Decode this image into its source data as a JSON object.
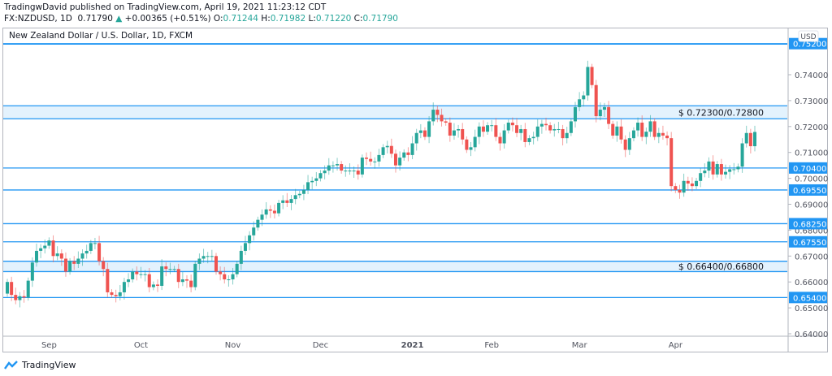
{
  "header": {
    "published": "TradingwDavid published on TradingView.com, April 19, 2021 11:23:12 CDT",
    "symbol": "FX:NZDUSD, 1D",
    "last": "0.71790",
    "change": "+0.00365 (+0.51%)",
    "open_label": "O:",
    "open": "0.71244",
    "high_label": "H:",
    "high": "0.71982",
    "low_label": "L:",
    "low": "0.71220",
    "close_label": "C:",
    "close": "0.71790",
    "change_icon": "triangle-up-icon"
  },
  "chart_title": "New Zealand Dollar / U.S. Dollar, 1D, FXCM",
  "currency_badge": "USD",
  "footer": {
    "brand": "TradingView",
    "logo_icon": "tradingview-logo-icon"
  },
  "colors": {
    "up": "#26a69a",
    "down": "#ef5350",
    "level": "#2196f3",
    "zone": "#e3f2fd"
  },
  "chart_data": {
    "type": "candlestick",
    "symbol": "NZDUSD",
    "interval": "1D",
    "ylim": [
      0.637,
      0.7535
    ],
    "y_ticks": [
      "0.74000",
      "0.73000",
      "0.72000",
      "0.71000",
      "0.70000",
      "0.69000",
      "0.68000",
      "0.67000",
      "0.66000",
      "0.65000",
      "0.64000"
    ],
    "y_tick_values": [
      0.74,
      0.73,
      0.72,
      0.71,
      0.7,
      0.69,
      0.68,
      0.67,
      0.66,
      0.65,
      0.64
    ],
    "x_labels": [
      {
        "label": "Sep",
        "bar": 10
      },
      {
        "label": "Oct",
        "bar": 32
      },
      {
        "label": "Nov",
        "bar": 54
      },
      {
        "label": "Dec",
        "bar": 75
      },
      {
        "label": "2021",
        "bar": 97,
        "bold": true
      },
      {
        "label": "Feb",
        "bar": 116
      },
      {
        "label": "Mar",
        "bar": 137
      },
      {
        "label": "Apr",
        "bar": 160
      }
    ],
    "first_open": 0.6555,
    "closes": [
      0.66,
      0.655,
      0.653,
      0.6545,
      0.654,
      0.6605,
      0.6675,
      0.672,
      0.673,
      0.674,
      0.676,
      0.67,
      0.671,
      0.669,
      0.664,
      0.668,
      0.667,
      0.669,
      0.671,
      0.672,
      0.675,
      0.675,
      0.668,
      0.665,
      0.656,
      0.655,
      0.6545,
      0.656,
      0.66,
      0.661,
      0.664,
      0.663,
      0.663,
      0.663,
      0.658,
      0.659,
      0.6585,
      0.666,
      0.665,
      0.665,
      0.665,
      0.66,
      0.661,
      0.6605,
      0.658,
      0.667,
      0.669,
      0.67,
      0.67,
      0.67,
      0.664,
      0.663,
      0.661,
      0.661,
      0.663,
      0.667,
      0.672,
      0.675,
      0.678,
      0.681,
      0.684,
      0.686,
      0.688,
      0.6875,
      0.6865,
      0.6905,
      0.6915,
      0.6905,
      0.692,
      0.6935,
      0.694,
      0.6955,
      0.6985,
      0.699,
      0.7,
      0.702,
      0.703,
      0.705,
      0.705,
      0.7055,
      0.703,
      0.703,
      0.703,
      0.703,
      0.7015,
      0.708,
      0.7075,
      0.7065,
      0.7065,
      0.709,
      0.712,
      0.7125,
      0.7095,
      0.705,
      0.708,
      0.71,
      0.709,
      0.7135,
      0.7175,
      0.7185,
      0.716,
      0.722,
      0.7265,
      0.7245,
      0.722,
      0.7215,
      0.7165,
      0.7185,
      0.719,
      0.715,
      0.711,
      0.712,
      0.716,
      0.72,
      0.718,
      0.7205,
      0.7205,
      0.716,
      0.7135,
      0.7185,
      0.7215,
      0.7205,
      0.7175,
      0.719,
      0.714,
      0.7155,
      0.716,
      0.72,
      0.721,
      0.7205,
      0.7185,
      0.719,
      0.719,
      0.7155,
      0.7175,
      0.722,
      0.7275,
      0.7305,
      0.732,
      0.743,
      0.736,
      0.724,
      0.7265,
      0.7275,
      0.721,
      0.7165,
      0.72,
      0.715,
      0.711,
      0.7155,
      0.7185,
      0.7215,
      0.716,
      0.718,
      0.722,
      0.716,
      0.7175,
      0.7165,
      0.7155,
      0.697,
      0.6955,
      0.6945,
      0.699,
      0.698,
      0.697,
      0.699,
      0.702,
      0.703,
      0.7065,
      0.7015,
      0.7055,
      0.7015,
      0.7025,
      0.7035,
      0.7035,
      0.7045,
      0.7135,
      0.7175,
      0.7124,
      0.7179
    ],
    "levels": [
      {
        "price": 0.752,
        "label": "0.75200"
      },
      {
        "price": 0.704,
        "label": "0.70400"
      },
      {
        "price": 0.6955,
        "label": "0.69550"
      },
      {
        "price": 0.6825,
        "label": "0.68250"
      },
      {
        "price": 0.6755,
        "label": "0.67550"
      },
      {
        "price": 0.654,
        "label": "0.65400"
      }
    ],
    "zones": [
      {
        "low": 0.723,
        "high": 0.728,
        "label": "$ 0.72300/0.72800"
      },
      {
        "low": 0.664,
        "high": 0.668,
        "label": "$ 0.66400/0.66800"
      }
    ]
  }
}
